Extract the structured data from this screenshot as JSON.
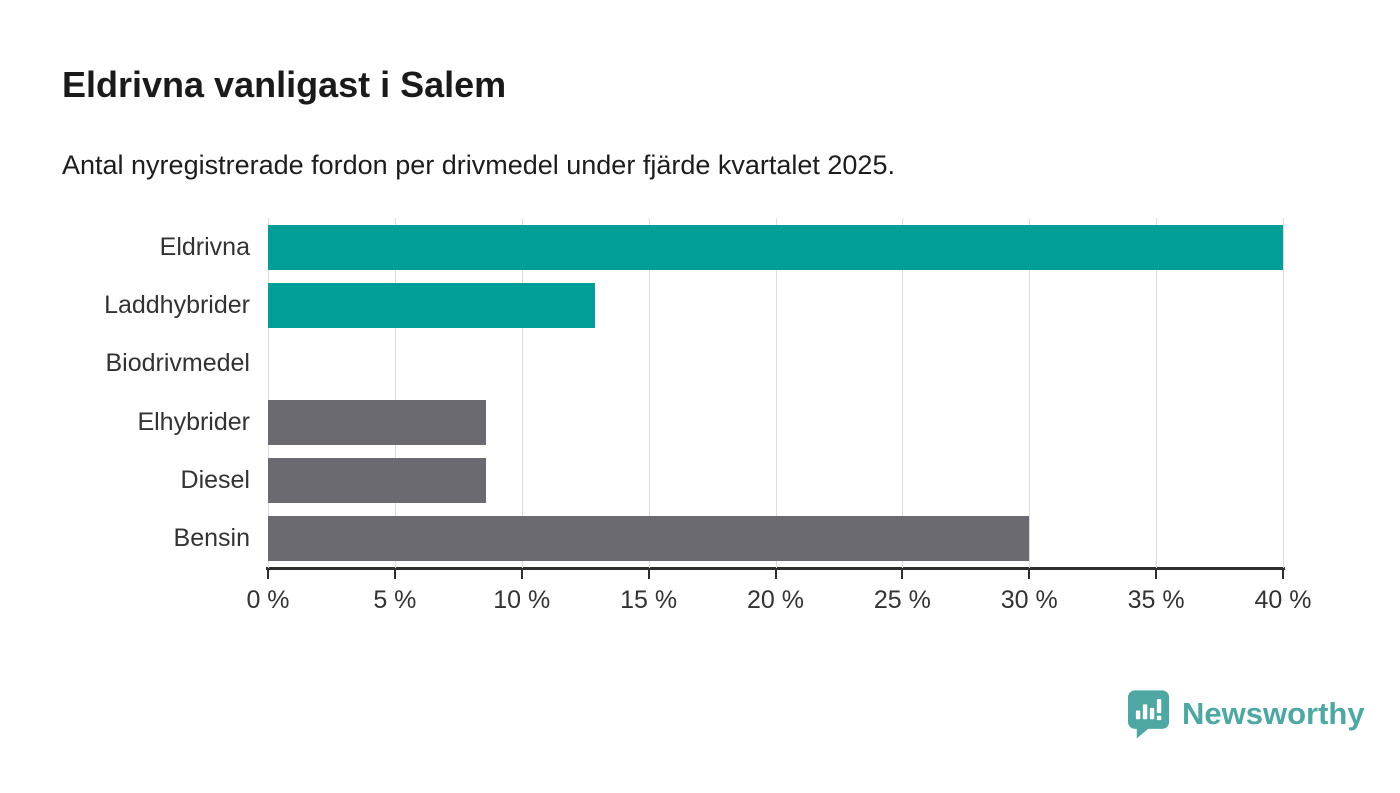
{
  "header": {
    "title": "Eldrivna vanligast i Salem",
    "subtitle": "Antal nyregistrerade fordon per drivmedel under fjärde kvartalet 2025."
  },
  "chart_data": {
    "type": "bar",
    "orientation": "horizontal",
    "title": "Eldrivna vanligast i Salem",
    "subtitle": "Antal nyregistrerade fordon per drivmedel under fjärde kvartalet 2025.",
    "categories": [
      "Eldrivna",
      "Laddhybrider",
      "Biodrivmedel",
      "Elhybrider",
      "Diesel",
      "Bensin"
    ],
    "values": [
      40.0,
      12.9,
      0,
      8.6,
      8.6,
      30.0
    ],
    "bar_colors": [
      "#009e96",
      "#009e96",
      "#6b6a70",
      "#6b6a70",
      "#6b6a70",
      "#6b6a70"
    ],
    "unit": "%",
    "xlim": [
      0,
      40
    ],
    "x_ticks": [
      0,
      5,
      10,
      15,
      20,
      25,
      30,
      35,
      40
    ],
    "x_tick_labels": [
      "0 %",
      "5 %",
      "10 %",
      "15 %",
      "20 %",
      "25 %",
      "30 %",
      "35 %",
      "40 %"
    ],
    "grid": true,
    "legend": "none"
  },
  "colors": {
    "teal_bar": "#009e96",
    "gray_bar": "#6b6a70",
    "gridline": "#dcdcdc",
    "axis": "#2e2e2e",
    "text": "#333333",
    "logo_teal": "#4ea7a3"
  },
  "branding": {
    "logo_text": "Newsworthy",
    "logo_icon": "bar-chart-speech-bubble-icon"
  }
}
